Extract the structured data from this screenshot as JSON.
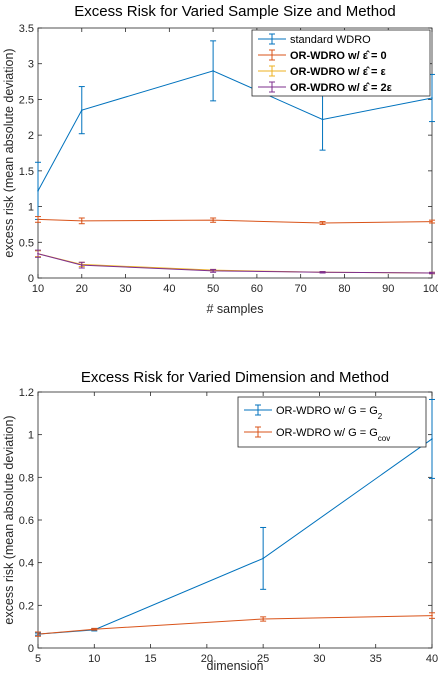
{
  "chart_data": [
    {
      "type": "line",
      "title": "Excess Risk for Varied Sample Size and Method",
      "xlabel": "# samples",
      "ylabel": "excess risk (mean absolute deviation)",
      "xlim": [
        10,
        100
      ],
      "ylim": [
        0,
        3.5
      ],
      "xticks": [
        10,
        20,
        30,
        40,
        50,
        60,
        70,
        80,
        90,
        100
      ],
      "yticks": [
        0,
        0.5,
        1,
        1.5,
        2,
        2.5,
        3,
        3.5
      ],
      "x": [
        10,
        20,
        50,
        75,
        100
      ],
      "legend_position": "top-right",
      "series": [
        {
          "name": "standard WDRO",
          "color": "#0072BD",
          "values": [
            1.22,
            2.35,
            2.9,
            2.22,
            2.52
          ],
          "err": [
            0.4,
            0.33,
            0.42,
            0.43,
            0.33
          ]
        },
        {
          "name": "OR-WDRO w/ ε̂ = 0",
          "bold": true,
          "color": "#D95319",
          "values": [
            0.82,
            0.8,
            0.81,
            0.77,
            0.79
          ],
          "err": [
            0.04,
            0.04,
            0.03,
            0.02,
            0.02
          ]
        },
        {
          "name": "OR-WDRO w/ ε̂ = ε",
          "bold": true,
          "color": "#EDB120",
          "values": [
            0.34,
            0.19,
            0.11,
            0.08,
            0.07
          ],
          "err": [
            0.04,
            0.03,
            0.01,
            0.01,
            0.01
          ]
        },
        {
          "name": "OR-WDRO w/ ε̂ = 2ε",
          "bold": true,
          "color": "#7E2F8E",
          "values": [
            0.34,
            0.18,
            0.1,
            0.08,
            0.07
          ],
          "err": [
            0.05,
            0.04,
            0.02,
            0.01,
            0.01
          ]
        }
      ]
    },
    {
      "type": "line",
      "title": "Excess Risk for Varied Dimension and Method",
      "xlabel": "dimension",
      "ylabel": "excess risk (mean absolute deviation)",
      "xlim": [
        5,
        40
      ],
      "ylim": [
        0,
        1.2
      ],
      "xticks": [
        5,
        10,
        15,
        20,
        25,
        30,
        35,
        40
      ],
      "yticks": [
        0,
        0.2,
        0.4,
        0.6,
        0.8,
        1,
        1.2
      ],
      "x": [
        5,
        10,
        25,
        40
      ],
      "legend_position": "top-right",
      "series": [
        {
          "name": "OR-WDRO w/ G = G",
          "sub": "2",
          "color": "#0072BD",
          "values": [
            0.065,
            0.085,
            0.42,
            0.98
          ],
          "err": [
            0.005,
            0.005,
            0.145,
            0.185
          ]
        },
        {
          "name": "OR-WDRO w/ G = G",
          "sub": "cov",
          "color": "#D95319",
          "values": [
            0.065,
            0.088,
            0.136,
            0.152
          ],
          "err": [
            0.01,
            0.004,
            0.01,
            0.013
          ]
        }
      ]
    }
  ]
}
